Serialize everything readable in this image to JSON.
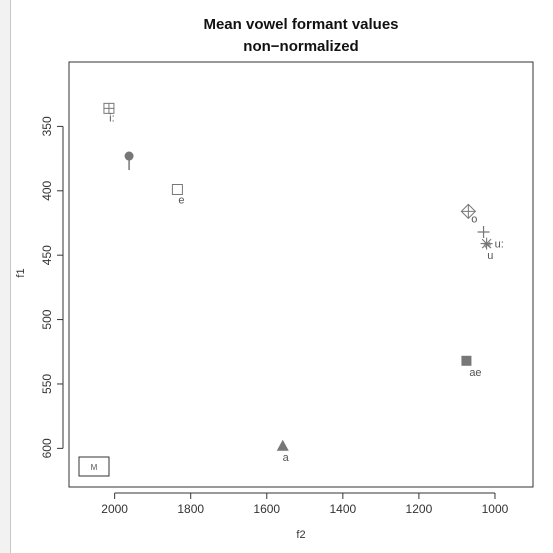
{
  "chart_data": {
    "type": "scatter",
    "title": "Mean vowel formant values",
    "subtitle": "non−normalized",
    "xlabel": "f2",
    "ylabel": "f1",
    "x_reversed": true,
    "y_reversed": true,
    "xlim": [
      2120,
      900
    ],
    "ylim": [
      300,
      630
    ],
    "xticks": [
      2000,
      1800,
      1600,
      1400,
      1200,
      1000
    ],
    "yticks": [
      350,
      400,
      450,
      500,
      550,
      600
    ],
    "grid": false,
    "legend": {
      "placement": "bottom-left",
      "entries": [
        "M"
      ]
    },
    "points": [
      {
        "label": "i:",
        "f2": 2015,
        "f1": 336,
        "marker": "square-plus"
      },
      {
        "label": "",
        "f2": 1962,
        "f1": 373,
        "marker": "filled-circle"
      },
      {
        "label": "e",
        "f2": 1835,
        "f1": 399,
        "marker": "open-square"
      },
      {
        "label": "o",
        "f2": 1070,
        "f1": 416,
        "marker": "diamond-plus"
      },
      {
        "label": "",
        "f2": 1030,
        "f1": 432,
        "marker": "plus"
      },
      {
        "label": "u:",
        "f2": 1022,
        "f1": 441,
        "marker": "asterisk"
      },
      {
        "label": "u",
        "f2": 1020,
        "f1": 442,
        "marker": "asterisk-small"
      },
      {
        "label": "ae",
        "f2": 1075,
        "f1": 532,
        "marker": "filled-square"
      },
      {
        "label": "a",
        "f2": 1558,
        "f1": 598,
        "marker": "filled-triangle"
      }
    ],
    "colors": {
      "marker": "#777777",
      "axis": "#333333"
    }
  }
}
